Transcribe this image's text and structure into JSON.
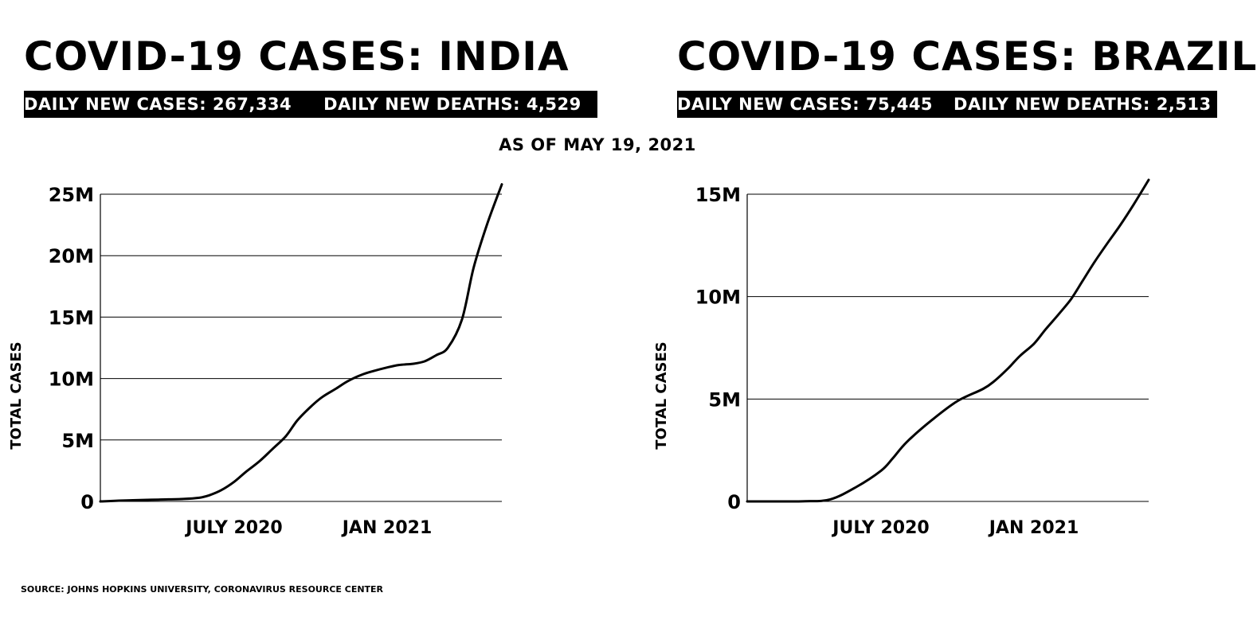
{
  "as_of": "AS OF MAY 19, 2021",
  "source": "SOURCE: JOHNS HOPKINS UNIVERSITY, CORONAVIRUS RESOURCE CENTER",
  "panels": [
    {
      "title": "COVID-19 CASES: INDIA",
      "stats": [
        {
          "label": "DAILY NEW CASES:",
          "value": "267,334"
        },
        {
          "label": "DAILY NEW DEATHS:",
          "value": "4,529"
        }
      ]
    },
    {
      "title": "COVID-19 CASES: BRAZIL",
      "stats": [
        {
          "label": "DAILY NEW CASES:",
          "value": "75,445"
        },
        {
          "label": "DAILY NEW DEATHS:",
          "value": "2,513"
        }
      ]
    }
  ],
  "chart_data": [
    {
      "type": "line",
      "title": "COVID-19 CASES: INDIA",
      "ylabel": "TOTAL CASES",
      "xlabel": "",
      "grid": true,
      "ylim": [
        0,
        25000000
      ],
      "xlim": [
        "2020-01-22",
        "2021-05-19"
      ],
      "yticks": [
        {
          "value": 0,
          "label": "0"
        },
        {
          "value": 5000000,
          "label": "5M"
        },
        {
          "value": 10000000,
          "label": "10M"
        },
        {
          "value": 15000000,
          "label": "15M"
        },
        {
          "value": 20000000,
          "label": "20M"
        },
        {
          "value": 25000000,
          "label": "25M"
        }
      ],
      "xticks": [
        {
          "value": "2020-07-01",
          "label": "JULY 2020"
        },
        {
          "value": "2021-01-01",
          "label": "JAN 2021"
        }
      ],
      "series": [
        {
          "x": [
            "2020-01-22",
            "2020-03-01",
            "2020-04-01",
            "2020-05-01",
            "2020-05-20",
            "2020-06-01",
            "2020-06-15",
            "2020-07-01",
            "2020-07-15",
            "2020-08-01",
            "2020-08-15",
            "2020-09-01",
            "2020-09-15",
            "2020-10-01",
            "2020-10-15",
            "2020-11-01",
            "2020-11-15",
            "2020-12-01",
            "2020-12-15",
            "2021-01-01",
            "2021-01-15",
            "2021-02-01",
            "2021-02-15",
            "2021-03-01",
            "2021-03-15",
            "2021-04-01",
            "2021-04-15",
            "2021-05-01",
            "2021-05-19"
          ],
          "y": [
            0,
            100000,
            150000,
            200000,
            300000,
            500000,
            900000,
            1600000,
            2400000,
            3300000,
            4200000,
            5300000,
            6600000,
            7700000,
            8500000,
            9200000,
            9800000,
            10300000,
            10600000,
            10900000,
            11100000,
            11200000,
            11400000,
            11900000,
            12500000,
            14800000,
            19000000,
            22500000,
            25800000
          ]
        }
      ]
    },
    {
      "type": "line",
      "title": "COVID-19 CASES: BRAZIL",
      "ylabel": "TOTAL CASES",
      "xlabel": "",
      "grid": true,
      "ylim": [
        0,
        15000000
      ],
      "xlim": [
        "2020-01-22",
        "2021-05-19"
      ],
      "yticks": [
        {
          "value": 0,
          "label": "0"
        },
        {
          "value": 5000000,
          "label": "5M"
        },
        {
          "value": 10000000,
          "label": "10M"
        },
        {
          "value": 15000000,
          "label": "15M"
        }
      ],
      "xticks": [
        {
          "value": "2020-07-01",
          "label": "JULY 2020"
        },
        {
          "value": "2021-01-01",
          "label": "JAN 2021"
        }
      ],
      "series": [
        {
          "x": [
            "2020-01-22",
            "2020-03-01",
            "2020-04-01",
            "2020-05-01",
            "2020-06-01",
            "2020-07-01",
            "2020-07-15",
            "2020-08-01",
            "2020-09-01",
            "2020-10-01",
            "2020-11-01",
            "2020-11-15",
            "2020-12-01",
            "2020-12-15",
            "2021-01-01",
            "2021-01-15",
            "2021-02-01",
            "2021-02-15",
            "2021-03-01",
            "2021-03-15",
            "2021-04-01",
            "2021-04-15",
            "2021-05-01",
            "2021-05-19"
          ],
          "y": [
            0,
            0,
            10000,
            100000,
            700000,
            1500000,
            2100000,
            2900000,
            4000000,
            4900000,
            5500000,
            5900000,
            6500000,
            7100000,
            7700000,
            8400000,
            9200000,
            9900000,
            10800000,
            11700000,
            12700000,
            13500000,
            14500000,
            15700000
          ]
        }
      ]
    }
  ]
}
